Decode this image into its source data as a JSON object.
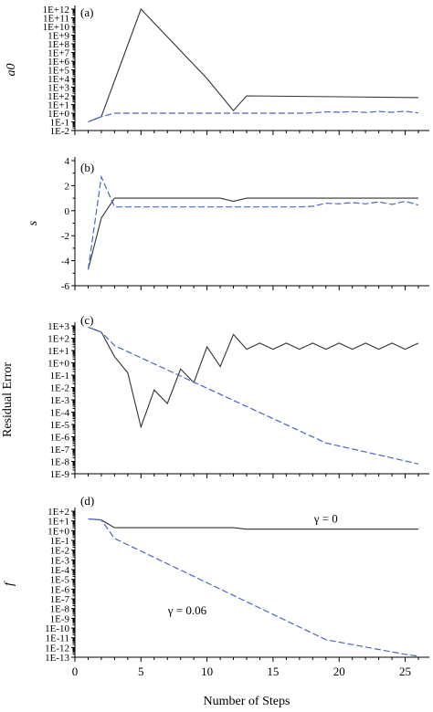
{
  "chart_data": [
    {
      "type": "line",
      "panel_label": "(a)",
      "ylabel": "a0",
      "yscale": "log",
      "ylim": [
        -2,
        12
      ],
      "ytick_labels": [
        "1E-2",
        "1E-1",
        "1E+0",
        "1E+1",
        "1E+2",
        "1E+3",
        "1E+4",
        "1E+5",
        "1E+6",
        "1E+7",
        "1E+8",
        "1E+9",
        "1E+10",
        "1E+11",
        "1E+12"
      ],
      "xlim": [
        0,
        26
      ],
      "series": [
        {
          "style": "solid",
          "x": [
            1,
            2,
            5,
            10,
            12,
            13,
            26
          ],
          "y": [
            -1,
            -0.4,
            12,
            4,
            0.3,
            2,
            1.8
          ]
        },
        {
          "style": "dashed",
          "x": [
            1,
            2,
            3,
            12,
            17,
            18,
            19,
            20,
            21,
            22,
            23,
            24,
            25,
            26
          ],
          "y": [
            -1,
            -0.4,
            0,
            0,
            0,
            0.04,
            0.15,
            0.12,
            0.18,
            0.08,
            0.2,
            0.1,
            0.22,
            0.02
          ]
        }
      ]
    },
    {
      "type": "line",
      "panel_label": "(b)",
      "ylabel": "s",
      "ylim": [
        -6,
        4
      ],
      "ytick_labels": [
        "4",
        "2",
        "0",
        "-2",
        "-4",
        "-6"
      ],
      "xlim": [
        0,
        26
      ],
      "series": [
        {
          "style": "solid",
          "x": [
            1,
            2,
            3,
            11,
            12,
            13,
            26
          ],
          "y": [
            -4.7,
            -0.6,
            1.0,
            1.0,
            0.75,
            1.0,
            1.0
          ]
        },
        {
          "style": "dashed",
          "x": [
            1,
            2,
            3,
            4,
            17,
            18,
            19,
            20,
            21,
            22,
            23,
            24,
            25,
            26
          ],
          "y": [
            -4.7,
            2.7,
            0.3,
            0.3,
            0.3,
            0.35,
            0.6,
            0.55,
            0.65,
            0.55,
            0.7,
            0.5,
            0.75,
            0.45
          ]
        }
      ]
    },
    {
      "type": "line",
      "panel_label": "(c)",
      "ylabel": "Residual Error",
      "yscale": "log",
      "ylim": [
        -9,
        3
      ],
      "ytick_labels": [
        "1E-9",
        "1E-8",
        "1E-7",
        "1E-6",
        "1E-5",
        "1E-4",
        "1E-3",
        "1E-2",
        "1E-1",
        "1E+0",
        "1E+1",
        "1E+2",
        "1E+3"
      ],
      "xlim": [
        0,
        26
      ],
      "series": [
        {
          "style": "solid",
          "x": [
            1,
            2,
            3,
            4,
            5,
            6,
            7,
            8,
            9,
            10,
            11,
            12,
            13,
            14,
            15,
            16,
            17,
            18,
            19,
            20,
            21,
            22,
            23,
            24,
            25,
            26
          ],
          "y": [
            2.9,
            2.5,
            0.5,
            -0.8,
            -5.2,
            -2.2,
            -3.3,
            -0.5,
            -1.6,
            1.3,
            -0.3,
            2.3,
            1.1,
            1.6,
            1.1,
            1.6,
            1.1,
            1.6,
            1.1,
            1.6,
            1.1,
            1.6,
            1.1,
            1.6,
            1.1,
            1.6
          ]
        },
        {
          "style": "dashed",
          "x": [
            1,
            2,
            3,
            19,
            26
          ],
          "y": [
            2.9,
            2.5,
            1.4,
            -6.5,
            -8.2
          ]
        }
      ]
    },
    {
      "type": "line",
      "panel_label": "(d)",
      "ylabel": "f",
      "yscale": "log",
      "ylim": [
        -13,
        2
      ],
      "ytick_labels": [
        "1E-13",
        "1E-12",
        "1E-11",
        "1E-10",
        "1E-9",
        "1E-8",
        "1E-7",
        "1E-6",
        "1E-5",
        "1E-4",
        "1E-3",
        "1E-2",
        "1E-1",
        "1E+0",
        "1E+1",
        "1E+2"
      ],
      "xlim": [
        0,
        26
      ],
      "xticks": [
        0,
        5,
        10,
        15,
        20,
        25
      ],
      "xlabel": "Number of Steps",
      "annotations": [
        {
          "text": "γ = 0",
          "x": 19,
          "y": 1.2
        },
        {
          "text": "γ = 0.06",
          "x": 8.5,
          "y": -8.2
        }
      ],
      "series": [
        {
          "style": "solid",
          "x": [
            1,
            2,
            3,
            12,
            13,
            26
          ],
          "y": [
            1.2,
            1.1,
            0.3,
            0.3,
            0.15,
            0.15
          ]
        },
        {
          "style": "dashed",
          "x": [
            1,
            2,
            3,
            19,
            25,
            26
          ],
          "y": [
            1.2,
            1.1,
            -0.8,
            -11.2,
            -12.7,
            -12.9
          ]
        }
      ]
    }
  ]
}
